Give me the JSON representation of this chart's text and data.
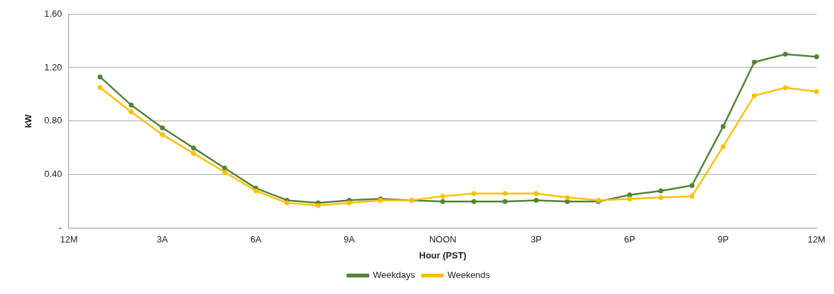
{
  "chart_data": {
    "type": "line",
    "xlabel": "Hour (PST)",
    "ylabel": "kW",
    "categories": [
      "12M",
      null,
      null,
      "3A",
      null,
      null,
      "6A",
      null,
      null,
      "9A",
      null,
      null,
      "NOON",
      null,
      null,
      "3P",
      null,
      null,
      "6P",
      null,
      null,
      "9P",
      null,
      null,
      "12M"
    ],
    "series": [
      {
        "name": "Weekdays",
        "color": "#548235",
        "values": [
          null,
          1.13,
          0.92,
          0.75,
          0.6,
          0.45,
          0.3,
          0.21,
          0.19,
          0.21,
          0.22,
          0.21,
          0.2,
          0.2,
          0.2,
          0.21,
          0.2,
          0.2,
          0.25,
          0.28,
          0.32,
          0.76,
          1.24,
          1.3,
          1.28
        ]
      },
      {
        "name": "Weekends",
        "color": "#ffc000",
        "values": [
          null,
          1.05,
          0.87,
          0.7,
          0.56,
          0.42,
          0.28,
          0.19,
          0.17,
          0.19,
          0.21,
          0.21,
          0.24,
          0.26,
          0.26,
          0.26,
          0.23,
          0.21,
          0.22,
          0.23,
          0.24,
          0.61,
          0.99,
          1.05,
          1.02
        ]
      }
    ],
    "ylim": [
      0,
      1.6
    ],
    "yticks": [
      {
        "value": 0,
        "label": "-"
      },
      {
        "value": 0.4,
        "label": "0.40"
      },
      {
        "value": 0.8,
        "label": "0.80"
      },
      {
        "value": 1.2,
        "label": "1.20"
      },
      {
        "value": 1.6,
        "label": "1.60"
      }
    ],
    "grid": "y",
    "legend": "bottom",
    "marker": "circle",
    "line_style": "solid"
  }
}
